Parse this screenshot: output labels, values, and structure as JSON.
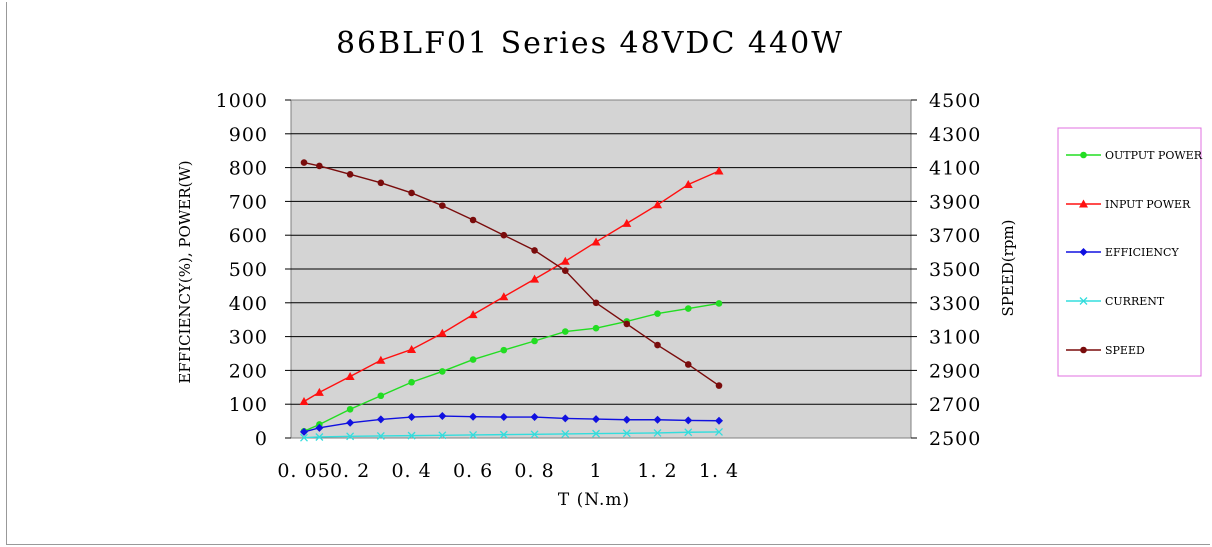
{
  "chart_data": {
    "type": "line",
    "title": "86BLF01 Series 48VDC 440W",
    "xlabel": "T (N.m)",
    "ylabel": "EFFICIENCY(%), POWER(W)",
    "y2label": "SPEED(rpm)",
    "ylim": [
      0,
      1000
    ],
    "y2lim": [
      2500,
      4500
    ],
    "yticks": [
      "0",
      "100",
      "200",
      "300",
      "400",
      "500",
      "600",
      "700",
      "800",
      "900",
      "1000"
    ],
    "y2ticks": [
      "2500",
      "2700",
      "2900",
      "3100",
      "3300",
      "3500",
      "3700",
      "3900",
      "4100",
      "4300",
      "4500"
    ],
    "xticks": [
      "0.05",
      "0.2",
      "0.4",
      "0.6",
      "0.8",
      "1",
      "1.2",
      "1.4"
    ],
    "x": [
      0.05,
      0.1,
      0.2,
      0.3,
      0.4,
      0.5,
      0.6,
      0.7,
      0.8,
      0.9,
      1.0,
      1.1,
      1.2,
      1.3,
      1.4
    ],
    "grid": true,
    "legend_position": "right",
    "plot_background": "#d4d4d4",
    "series": [
      {
        "name": "OUTPUT POWER",
        "axis": "left",
        "color": "#22dd22",
        "marker": "circle",
        "values": [
          20,
          40,
          85,
          125,
          165,
          197,
          232,
          260,
          287,
          315,
          325,
          345,
          368,
          383,
          398
        ]
      },
      {
        "name": "INPUT POWER",
        "axis": "left",
        "color": "#ff1010",
        "marker": "triangle",
        "values": [
          108,
          135,
          182,
          230,
          262,
          310,
          365,
          418,
          470,
          523,
          580,
          635,
          690,
          750,
          790
        ]
      },
      {
        "name": "EFFICIENCY",
        "axis": "left",
        "color": "#1010e0",
        "marker": "diamond",
        "values": [
          18,
          30,
          45,
          55,
          62,
          65,
          63,
          62,
          62,
          58,
          56,
          54,
          54,
          52,
          51
        ]
      },
      {
        "name": "CURRENT",
        "axis": "left",
        "color": "#33dddd",
        "marker": "x",
        "values": [
          1,
          3,
          5,
          6,
          7,
          8,
          9,
          10,
          11,
          12,
          13,
          14,
          15,
          17,
          18
        ]
      },
      {
        "name": "SPEED",
        "axis": "right",
        "color": "#7a0c0c",
        "marker": "circle",
        "values": [
          4130,
          4110,
          4060,
          4010,
          3950,
          3875,
          3790,
          3700,
          3610,
          3490,
          3300,
          3175,
          3050,
          2935,
          2810
        ]
      }
    ]
  }
}
